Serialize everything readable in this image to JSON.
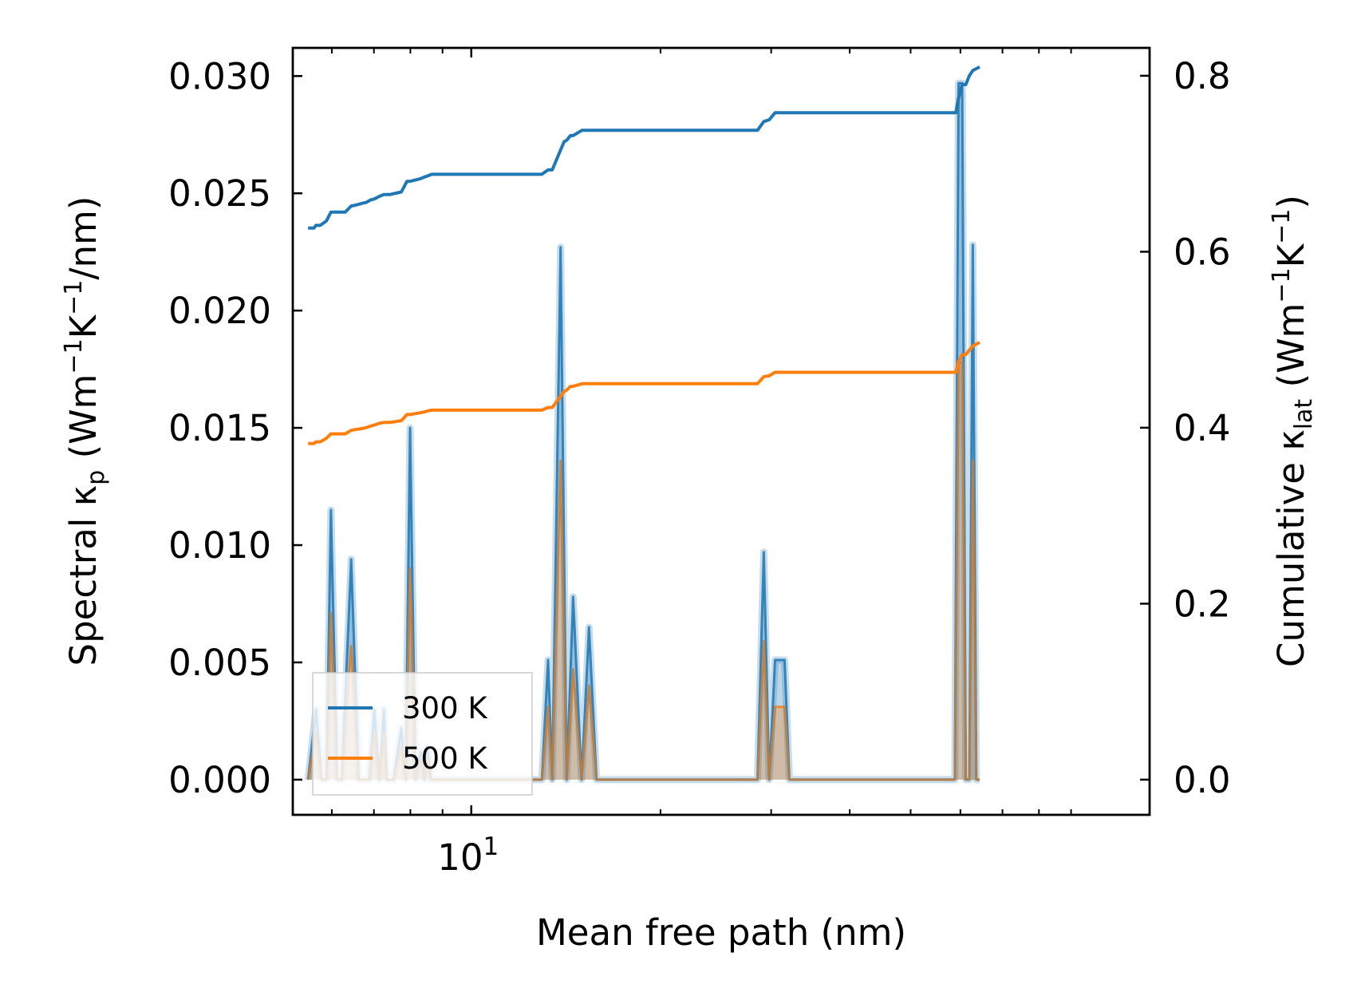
{
  "chart_data": {
    "type": "line",
    "x_scale": "log",
    "xlabel": "Mean free path (nm)",
    "ylabel_left": {
      "prefix": "Spectral κ",
      "sub": "p",
      "unit_prefix": " (Wm",
      "sup1": "−1",
      "mid": "K",
      "sup2": "−1",
      "suffix": "/nm)"
    },
    "ylabel_right": {
      "prefix": "Cumulative κ",
      "sub": "lat",
      "unit_prefix": " (Wm",
      "sup1": "−1",
      "mid": "K",
      "sup2": "−1",
      "suffix": ")"
    },
    "xlim": [
      5.2,
      120
    ],
    "ylim_left": [
      -0.0015,
      0.0312
    ],
    "ylim_right": [
      -0.04,
      0.8317
    ],
    "x_ticks": [
      {
        "value": 10,
        "base": "10",
        "exp": "1"
      }
    ],
    "y_left_ticks": [
      {
        "value": 0.0,
        "label": "0.000"
      },
      {
        "value": 0.005,
        "label": "0.005"
      },
      {
        "value": 0.01,
        "label": "0.010"
      },
      {
        "value": 0.015,
        "label": "0.015"
      },
      {
        "value": 0.02,
        "label": "0.020"
      },
      {
        "value": 0.025,
        "label": "0.025"
      },
      {
        "value": 0.03,
        "label": "0.030"
      }
    ],
    "y_right_ticks": [
      {
        "value": 0.0,
        "label": "0.0"
      },
      {
        "value": 0.2,
        "label": "0.2"
      },
      {
        "value": 0.4,
        "label": "0.4"
      },
      {
        "value": 0.6,
        "label": "0.6"
      },
      {
        "value": 0.8,
        "label": "0.8"
      }
    ],
    "legend": {
      "position": "lower-left",
      "entries": [
        "300 K",
        "500 K"
      ]
    },
    "colors": {
      "300 K": "#1f77b4",
      "500 K": "#ff7f0e"
    },
    "series": [
      {
        "name": "300 K",
        "axis": "left",
        "kind": "spectral",
        "x": [
          5.5,
          5.66,
          5.78,
          5.88,
          5.98,
          6.12,
          6.22,
          6.44,
          6.62,
          6.88,
          7.01,
          7.14,
          7.26,
          7.34,
          7.42,
          7.52,
          7.74,
          7.86,
          7.99,
          8.15,
          8.31,
          8.42,
          8.51,
          8.63,
          12.95,
          13.25,
          13.45,
          13.87,
          14.18,
          14.52,
          14.98,
          15.39,
          15.82,
          28.53,
          29.2,
          29.78,
          30.43,
          31.02,
          31.51,
          32.07,
          58.8,
          59.6,
          60.4,
          61.2,
          62.0,
          62.8,
          63.6,
          64.4
        ],
        "y": [
          0,
          0.003,
          0,
          0,
          0.0115,
          0,
          0,
          0.0094,
          0,
          0,
          0.003,
          0,
          0.003,
          0,
          0,
          0,
          0.0022,
          0,
          0.015,
          0,
          0.0012,
          0,
          0.0014,
          0,
          0,
          0.0051,
          0,
          0.0227,
          0,
          0.0078,
          0,
          0.0065,
          0,
          0,
          0.0097,
          0,
          0.0051,
          0.0051,
          0.0051,
          0,
          0,
          0.0297,
          0.0297,
          0,
          0,
          0.0228,
          0,
          0
        ]
      },
      {
        "name": "500 K",
        "axis": "left",
        "kind": "spectral",
        "x": [
          5.5,
          5.66,
          5.78,
          5.88,
          5.98,
          6.12,
          6.22,
          6.44,
          6.62,
          6.88,
          7.01,
          7.14,
          7.26,
          7.34,
          7.42,
          7.52,
          7.74,
          7.86,
          7.99,
          8.15,
          8.31,
          8.42,
          8.51,
          8.63,
          12.95,
          13.25,
          13.45,
          13.87,
          14.18,
          14.52,
          14.98,
          15.39,
          15.82,
          28.53,
          29.2,
          29.78,
          30.43,
          31.02,
          31.51,
          32.07,
          58.8,
          59.6,
          60.4,
          61.2,
          62.0,
          62.8,
          63.6,
          64.4
        ],
        "y": [
          0,
          0.002,
          0,
          0,
          0.0071,
          0,
          0,
          0.0057,
          0,
          0,
          0.002,
          0,
          0.002,
          0,
          0,
          0,
          0.0014,
          0,
          0.009,
          0,
          0.0008,
          0,
          0.0009,
          0,
          0,
          0.0031,
          0,
          0.0136,
          0,
          0.0047,
          0,
          0.004,
          0,
          0,
          0.0059,
          0,
          0.0031,
          0.0031,
          0.0031,
          0,
          0,
          0.0178,
          0.0178,
          0,
          0,
          0.0136,
          0,
          0
        ]
      },
      {
        "name": "300 K",
        "axis": "right",
        "kind": "cumulative",
        "x": [
          5.5,
          5.62,
          5.66,
          5.75,
          5.88,
          5.98,
          6.3,
          6.44,
          6.55,
          6.7,
          6.8,
          6.92,
          7.01,
          7.14,
          7.26,
          7.42,
          7.74,
          7.9,
          7.99,
          8.3,
          8.43,
          8.51,
          8.65,
          12.95,
          13.25,
          13.45,
          13.95,
          14.05,
          14.2,
          14.38,
          14.52,
          15.0,
          15.39,
          28.53,
          29.2,
          29.78,
          30.43,
          31.0,
          59.0,
          59.6,
          60.4,
          61.2,
          62.0,
          62.8,
          64.4
        ],
        "y": [
          0.627,
          0.627,
          0.63,
          0.63,
          0.635,
          0.645,
          0.645,
          0.652,
          0.653,
          0.655,
          0.656,
          0.659,
          0.66,
          0.663,
          0.665,
          0.665,
          0.668,
          0.68,
          0.68,
          0.683,
          0.685,
          0.686,
          0.688,
          0.688,
          0.693,
          0.693,
          0.72,
          0.725,
          0.727,
          0.732,
          0.732,
          0.738,
          0.738,
          0.738,
          0.748,
          0.75,
          0.758,
          0.758,
          0.758,
          0.775,
          0.79,
          0.79,
          0.8,
          0.806,
          0.81
        ]
      },
      {
        "name": "500 K",
        "axis": "right",
        "kind": "cumulative",
        "x": [
          5.5,
          5.62,
          5.66,
          5.75,
          5.88,
          5.98,
          6.3,
          6.44,
          6.55,
          6.7,
          6.8,
          6.92,
          7.01,
          7.14,
          7.26,
          7.42,
          7.74,
          7.9,
          7.99,
          8.3,
          8.43,
          8.51,
          8.65,
          12.95,
          13.25,
          13.45,
          13.95,
          14.05,
          14.2,
          14.38,
          14.52,
          15.0,
          15.39,
          28.53,
          29.2,
          29.78,
          30.43,
          31.0,
          59.0,
          59.6,
          60.4,
          61.2,
          62.0,
          62.8,
          64.4
        ],
        "y": [
          0.382,
          0.382,
          0.384,
          0.384,
          0.388,
          0.393,
          0.393,
          0.397,
          0.398,
          0.399,
          0.4,
          0.402,
          0.403,
          0.405,
          0.406,
          0.406,
          0.408,
          0.415,
          0.415,
          0.417,
          0.418,
          0.419,
          0.42,
          0.42,
          0.423,
          0.423,
          0.438,
          0.441,
          0.443,
          0.447,
          0.447,
          0.45,
          0.45,
          0.45,
          0.458,
          0.459,
          0.463,
          0.463,
          0.463,
          0.475,
          0.483,
          0.483,
          0.488,
          0.493,
          0.497
        ]
      }
    ]
  }
}
